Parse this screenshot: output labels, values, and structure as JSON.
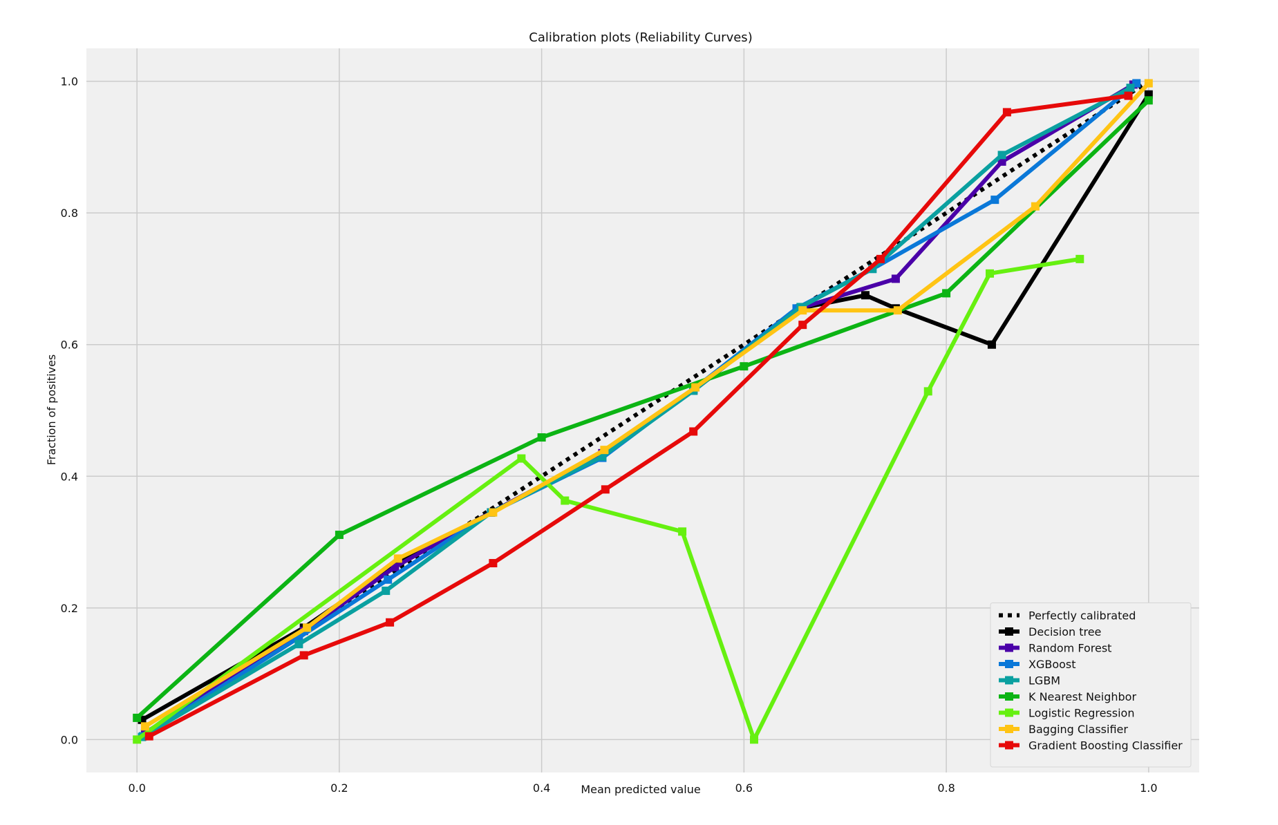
{
  "chart_data": {
    "type": "line",
    "title": "Calibration plots (Reliability Curves)",
    "xlabel": "Mean predicted value",
    "ylabel": "Fraction of positives",
    "xlim": [
      -0.05,
      1.05
    ],
    "ylim": [
      -0.05,
      1.05
    ],
    "xticks": [
      0.0,
      0.2,
      0.4,
      0.6,
      0.8,
      1.0
    ],
    "yticks": [
      0.0,
      0.2,
      0.4,
      0.6,
      0.8,
      1.0
    ],
    "xtick_labels": [
      "0.0",
      "0.2",
      "0.4",
      "0.6",
      "0.8",
      "1.0"
    ],
    "ytick_labels": [
      "0.0",
      "0.2",
      "0.4",
      "0.6",
      "0.8",
      "1.0"
    ],
    "grid": true,
    "legend_position": "lower-right",
    "series": [
      {
        "name": "Perfectly calibrated",
        "color": "#000000",
        "style": "dotted",
        "marker": false,
        "x": [
          0,
          1
        ],
        "y": [
          0,
          1
        ]
      },
      {
        "name": "Decision tree",
        "color": "#000000",
        "style": "solid",
        "marker": true,
        "x": [
          0.005,
          0.165,
          0.26,
          0.35,
          0.46,
          0.55,
          0.655,
          0.72,
          0.75,
          0.845,
          1.0
        ],
        "y": [
          0.03,
          0.17,
          0.27,
          0.345,
          0.435,
          0.53,
          0.655,
          0.675,
          0.655,
          0.6,
          0.98
        ]
      },
      {
        "name": "Random Forest",
        "color": "#4a00a8",
        "style": "solid",
        "marker": true,
        "x": [
          0.008,
          0.165,
          0.255,
          0.35,
          0.46,
          0.55,
          0.655,
          0.75,
          0.855,
          0.985
        ],
        "y": [
          0.01,
          0.165,
          0.262,
          0.345,
          0.435,
          0.532,
          0.655,
          0.7,
          0.878,
          0.995
        ]
      },
      {
        "name": "XGBoost",
        "color": "#0a78d8",
        "style": "solid",
        "marker": true,
        "x": [
          0.006,
          0.16,
          0.248,
          0.35,
          0.46,
          0.55,
          0.652,
          0.727,
          0.848,
          0.988
        ],
        "y": [
          0.005,
          0.155,
          0.243,
          0.345,
          0.428,
          0.532,
          0.655,
          0.715,
          0.82,
          0.997
        ]
      },
      {
        "name": "LGBM",
        "color": "#0aa0a0",
        "style": "solid",
        "marker": true,
        "x": [
          0.005,
          0.16,
          0.246,
          0.35,
          0.46,
          0.55,
          0.656,
          0.727,
          0.855,
          0.982
        ],
        "y": [
          0.004,
          0.145,
          0.226,
          0.345,
          0.43,
          0.53,
          0.657,
          0.715,
          0.888,
          0.99
        ]
      },
      {
        "name": "K Nearest Neighbor",
        "color": "#0cb414",
        "style": "solid",
        "marker": true,
        "x": [
          0.0,
          0.2,
          0.4,
          0.6,
          0.8,
          1.0
        ],
        "y": [
          0.033,
          0.311,
          0.459,
          0.567,
          0.678,
          0.971
        ]
      },
      {
        "name": "Logistic Regression",
        "color": "#66f010",
        "style": "solid",
        "marker": true,
        "x": [
          0.0,
          0.38,
          0.423,
          0.539,
          0.61,
          0.782,
          0.843,
          0.932
        ],
        "y": [
          0.0,
          0.427,
          0.363,
          0.316,
          0.0,
          0.529,
          0.708,
          0.73
        ]
      },
      {
        "name": "Bagging Classifier",
        "color": "#ffc414",
        "style": "solid",
        "marker": true,
        "x": [
          0.008,
          0.168,
          0.258,
          0.352,
          0.462,
          0.552,
          0.658,
          0.752,
          0.888,
          1.0
        ],
        "y": [
          0.02,
          0.17,
          0.275,
          0.345,
          0.44,
          0.535,
          0.652,
          0.652,
          0.81,
          0.997
        ]
      },
      {
        "name": "Gradient Boosting Classifier",
        "color": "#e60a0a",
        "style": "solid",
        "marker": true,
        "x": [
          0.012,
          0.165,
          0.25,
          0.352,
          0.463,
          0.55,
          0.658,
          0.735,
          0.86,
          0.98
        ],
        "y": [
          0.005,
          0.128,
          0.178,
          0.268,
          0.38,
          0.468,
          0.63,
          0.73,
          0.953,
          0.978
        ]
      }
    ]
  }
}
